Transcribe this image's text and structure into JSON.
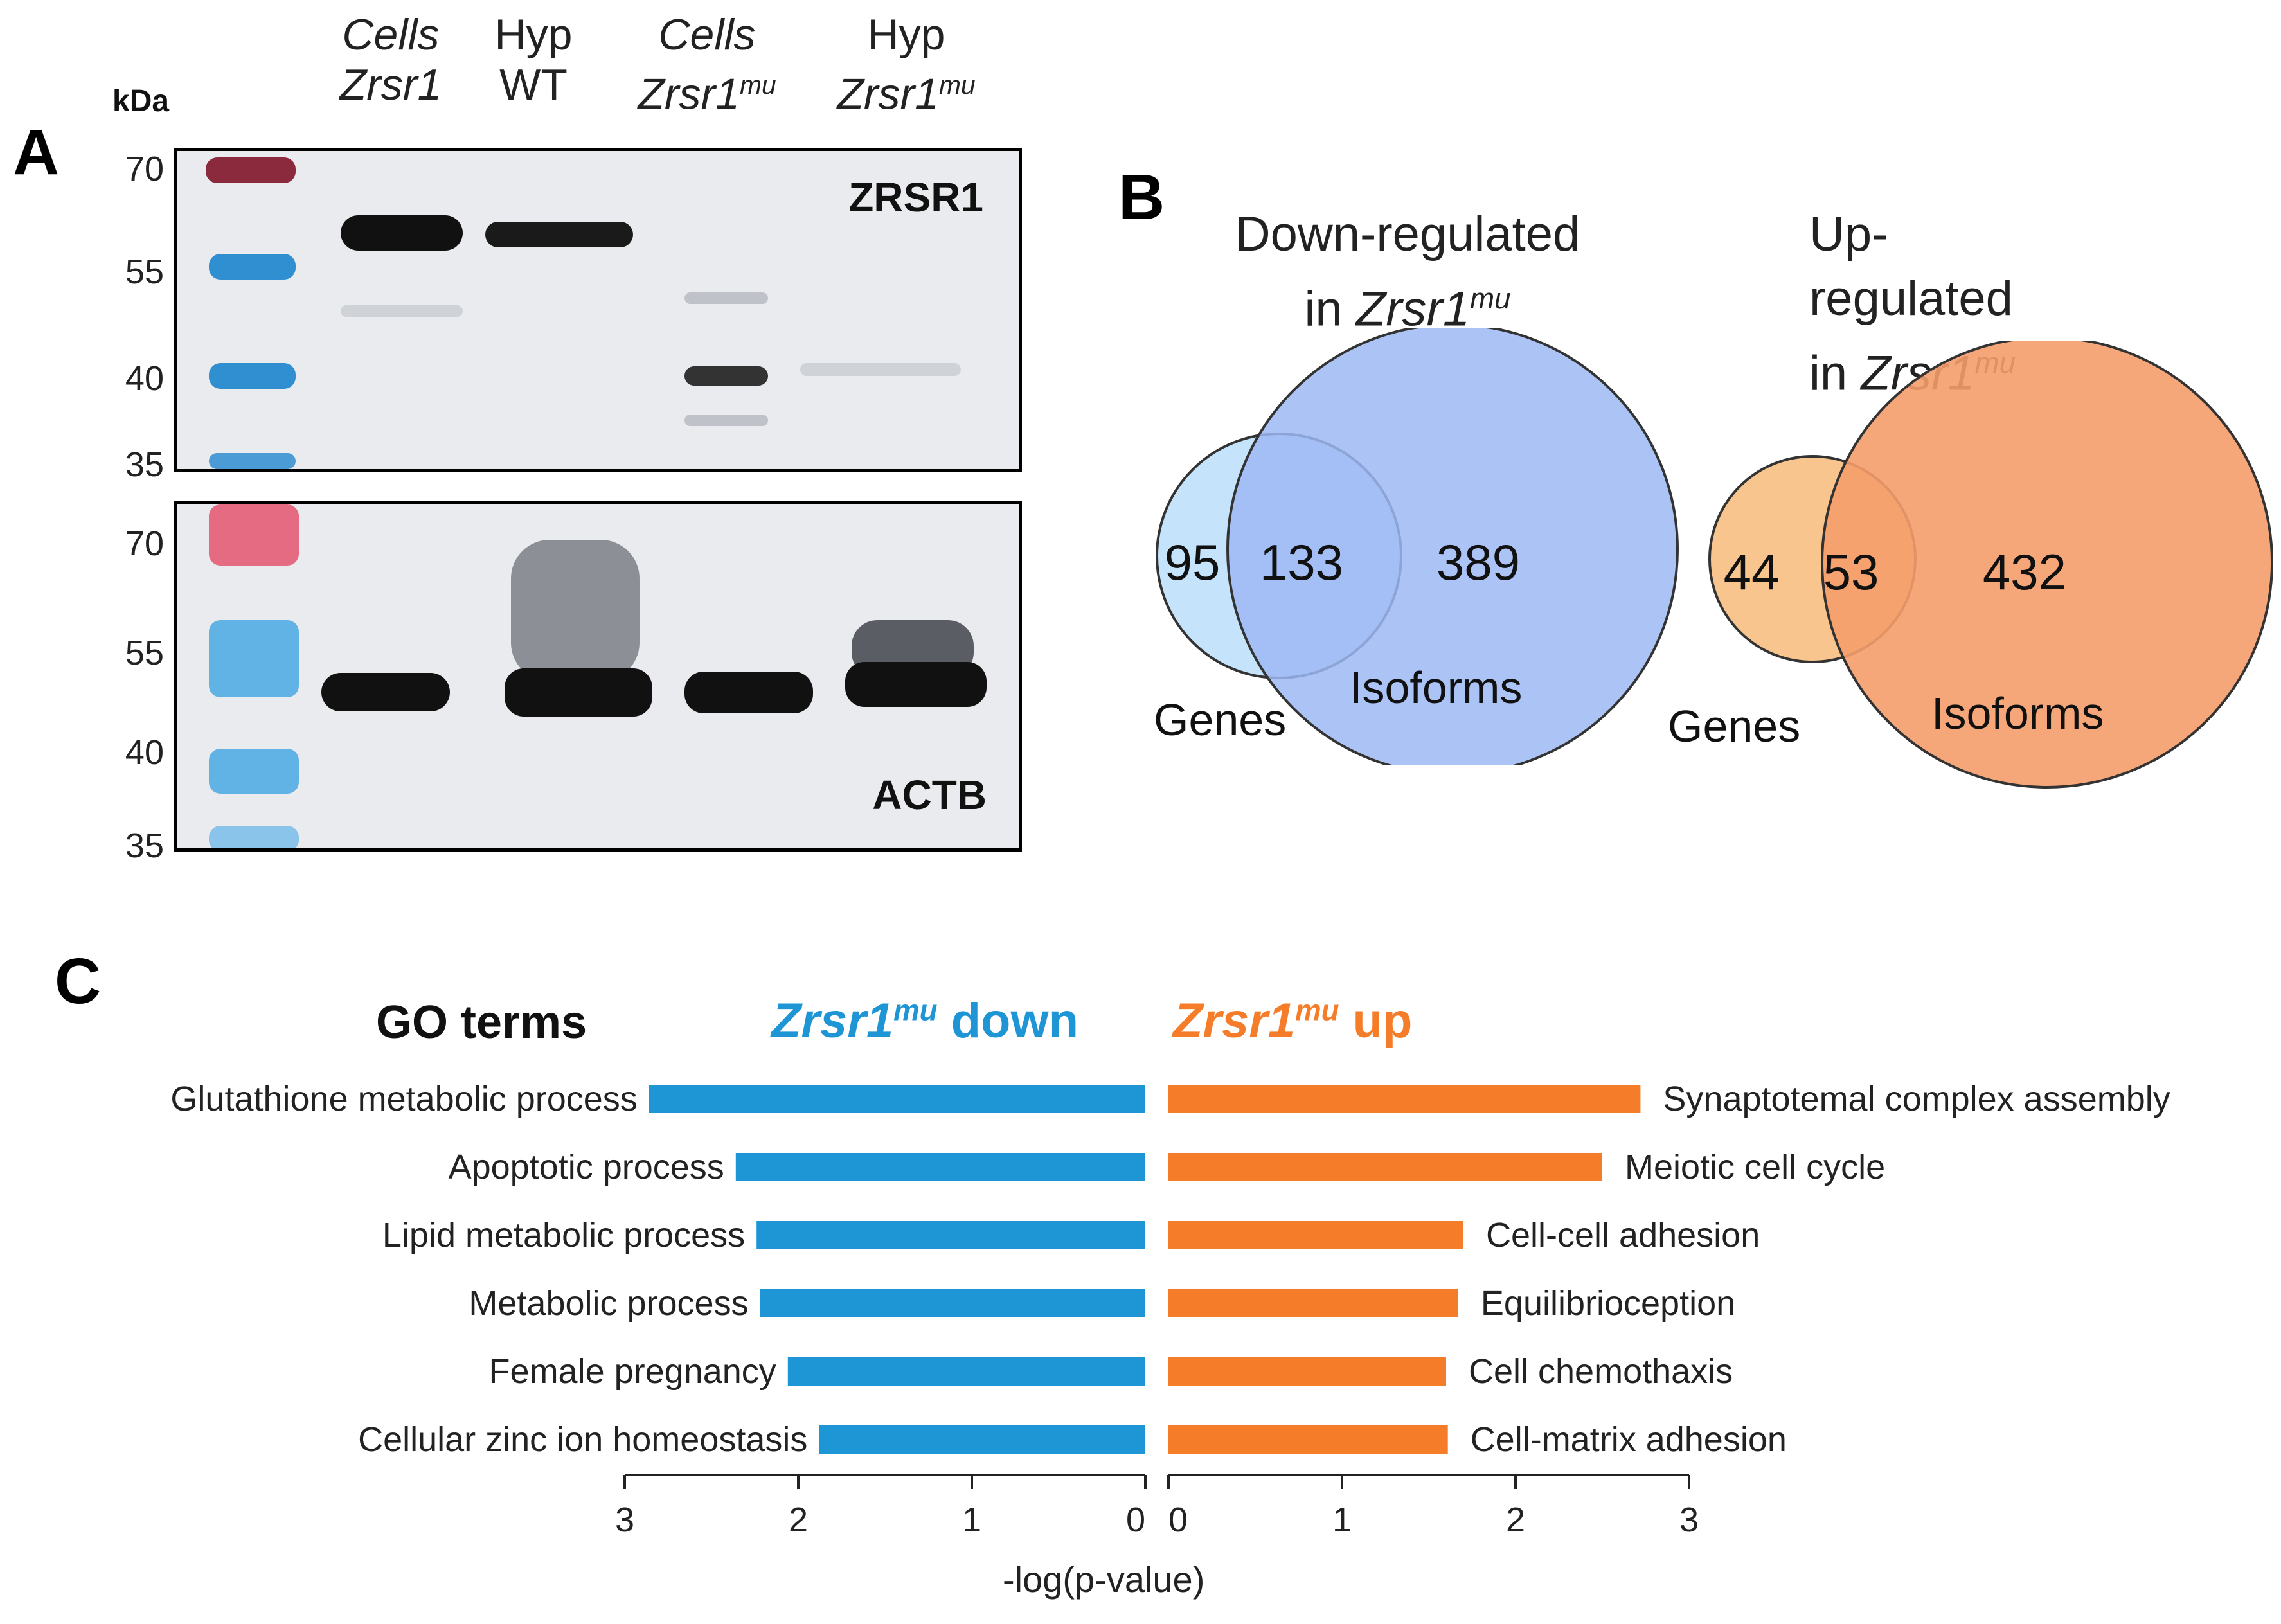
{
  "panelA": {
    "letter": "A",
    "kda_label": "kDa",
    "lanes": [
      {
        "line1": "Cells",
        "line2": "Zrsr1",
        "sup": "",
        "italic1": true,
        "italic2": true
      },
      {
        "line1": "Hyp",
        "line2": "WT",
        "sup": "",
        "italic1": false,
        "italic2": false
      },
      {
        "line1": "Cells",
        "line2": "Zrsr1",
        "sup": "mu",
        "italic1": true,
        "italic2": true
      },
      {
        "line1": "Hyp",
        "line2": "Zrsr1",
        "sup": "mu",
        "italic1": false,
        "italic2": true
      }
    ],
    "top_blot": {
      "label": "ZRSR1",
      "markers": [
        "70",
        "55",
        "40",
        "35"
      ]
    },
    "bottom_blot": {
      "label": "ACTB",
      "markers": [
        "70",
        "55",
        "40",
        "35"
      ]
    }
  },
  "panelB": {
    "letter": "B",
    "down": {
      "title_line1": "Down-regulated",
      "title_line2_prefix": "in ",
      "title_line2_gene": "Zrsr1",
      "title_line2_sup": "mu",
      "genes_only": "95",
      "overlap": "133",
      "isoforms_only": "389",
      "genes_label": "Genes",
      "isoforms_label": "Isoforms",
      "colors": {
        "genes": "#c5e3fb",
        "isoforms": "#9db8f4"
      }
    },
    "up": {
      "title_line1": "Up-regulated",
      "title_line2_prefix": "in ",
      "title_line2_gene": "Zrsr1",
      "title_line2_sup": "mu",
      "genes_only": "44",
      "overlap": "53",
      "isoforms_only": "432",
      "genes_label": "Genes",
      "isoforms_label": "Isoforms",
      "colors": {
        "genes": "#f9c58e",
        "isoforms": "#f59d6c"
      }
    }
  },
  "panelC": {
    "letter": "C",
    "header_go": "GO terms",
    "header_down_gene": "Zrsr1",
    "header_down_sup": "mu",
    "header_down_word": " down",
    "header_up_gene": "Zrsr1",
    "header_up_sup": "mu",
    "header_up_word": " up",
    "xlabel": "-log(p-value)",
    "down_ticks": [
      "3",
      "2",
      "1",
      "0"
    ],
    "up_ticks": [
      "0",
      "1",
      "2",
      "3"
    ],
    "colors": {
      "down": "#1e96d6",
      "up": "#f57c28"
    }
  },
  "chart_data": {
    "type": "bar",
    "xlabel": "-log(p-value)",
    "xlim": [
      0,
      3
    ],
    "series": [
      {
        "name": "Zrsr1mu down",
        "categories": [
          "Glutathione metabolic process",
          "Apoptotic process",
          "Lipid metabolic process",
          "Metabolic process",
          "Female pregnancy",
          "Cellular zinc ion homeostasis"
        ],
        "values": [
          2.86,
          2.36,
          2.24,
          2.22,
          2.06,
          1.88
        ]
      },
      {
        "name": "Zrsr1mu up",
        "categories": [
          "Synaptotemal complex assembly",
          "Meiotic cell cycle",
          "Cell-cell adhesion",
          "Equilibrioception",
          "Cell chemothaxis",
          "Cell-matrix adhesion"
        ],
        "values": [
          2.72,
          2.5,
          1.7,
          1.67,
          1.6,
          1.61
        ]
      }
    ]
  }
}
